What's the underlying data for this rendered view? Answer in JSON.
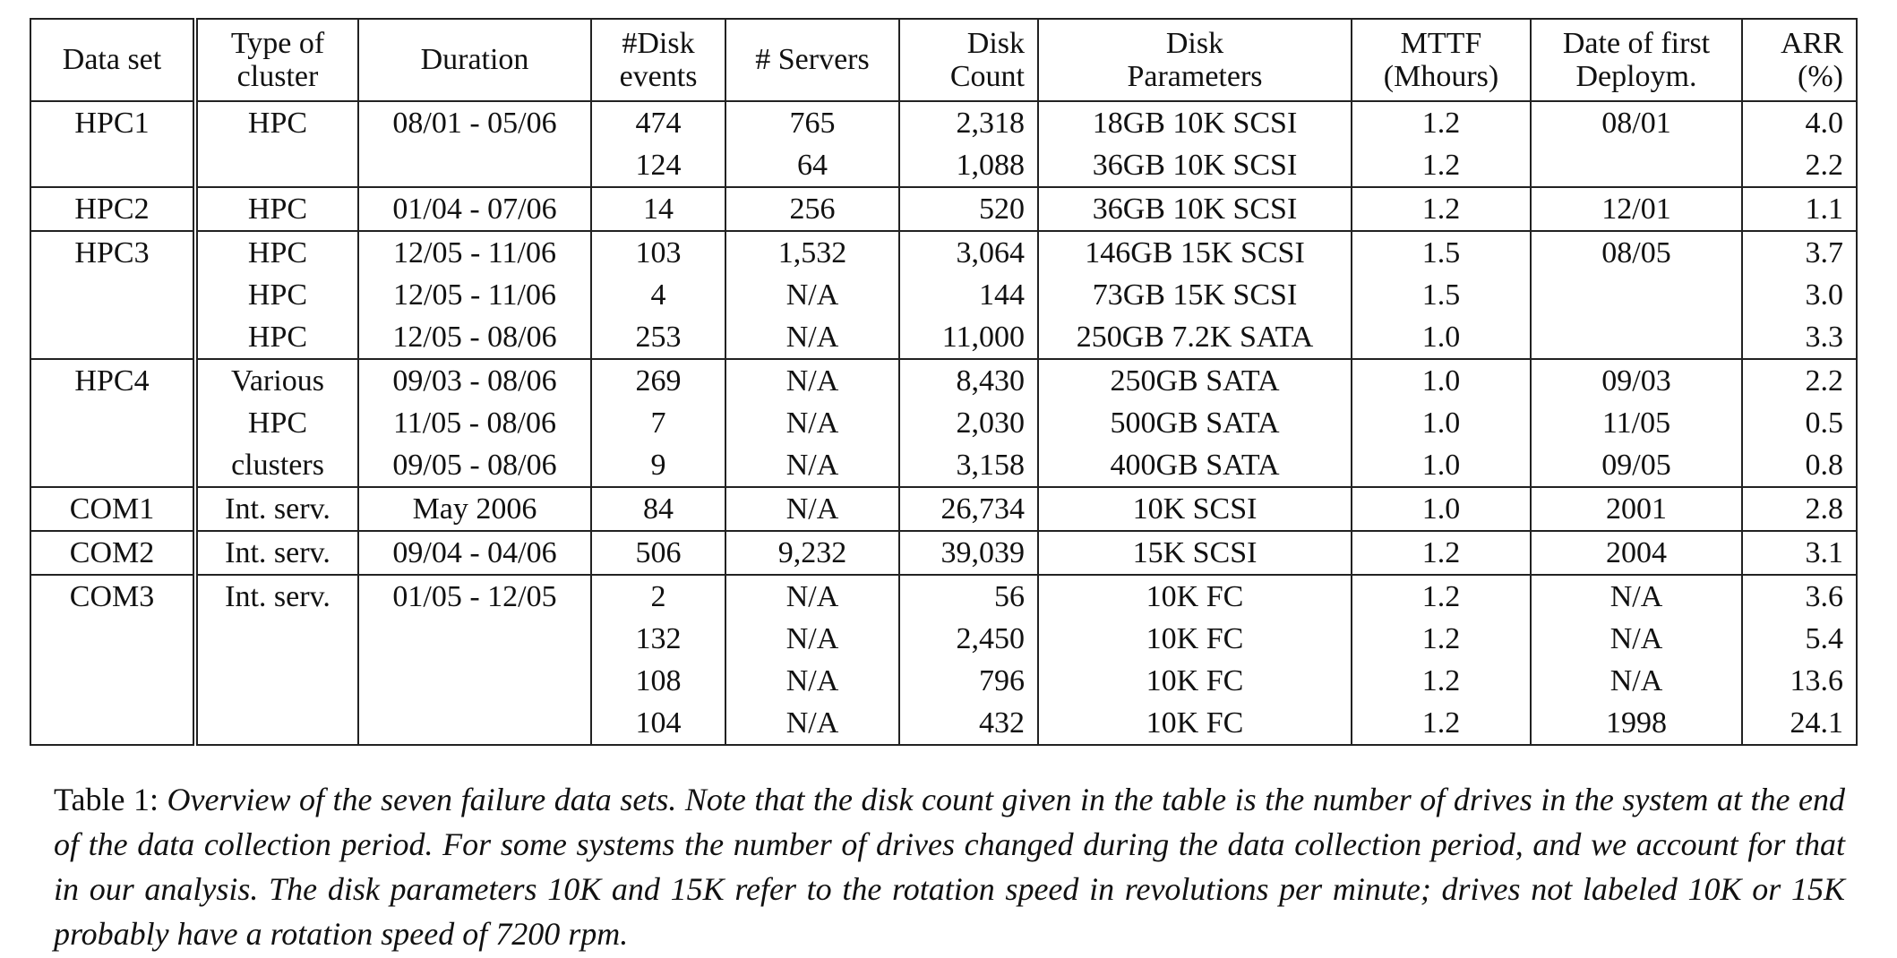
{
  "table": {
    "headers": [
      [
        "Data set"
      ],
      [
        "Type of",
        "cluster"
      ],
      [
        "Duration"
      ],
      [
        "#Disk",
        "events"
      ],
      [
        "# Servers"
      ],
      [
        "Disk",
        "Count"
      ],
      [
        "Disk",
        "Parameters"
      ],
      [
        "MTTF",
        "(Mhours)"
      ],
      [
        "Date of first",
        "Deploym."
      ],
      [
        "ARR",
        "(%)"
      ]
    ],
    "groups": [
      {
        "rows": [
          [
            "HPC1",
            "HPC",
            "08/01 - 05/06",
            "474",
            "765",
            "2,318",
            "18GB 10K SCSI",
            "1.2",
            "08/01",
            "4.0"
          ],
          [
            "",
            "",
            "",
            "124",
            "64",
            "1,088",
            "36GB 10K SCSI",
            "1.2",
            "",
            "2.2"
          ]
        ]
      },
      {
        "rows": [
          [
            "HPC2",
            "HPC",
            "01/04 - 07/06",
            "14",
            "256",
            "520",
            "36GB 10K SCSI",
            "1.2",
            "12/01",
            "1.1"
          ]
        ]
      },
      {
        "rows": [
          [
            "HPC3",
            "HPC",
            "12/05 - 11/06",
            "103",
            "1,532",
            "3,064",
            "146GB 15K SCSI",
            "1.5",
            "08/05",
            "3.7"
          ],
          [
            "",
            "HPC",
            "12/05 - 11/06",
            "4",
            "N/A",
            "144",
            "73GB 15K SCSI",
            "1.5",
            "",
            "3.0"
          ],
          [
            "",
            "HPC",
            "12/05 - 08/06",
            "253",
            "N/A",
            "11,000",
            "250GB 7.2K SATA",
            "1.0",
            "",
            "3.3"
          ]
        ]
      },
      {
        "rows": [
          [
            "HPC4",
            "Various",
            "09/03 - 08/06",
            "269",
            "N/A",
            "8,430",
            "250GB SATA",
            "1.0",
            "09/03",
            "2.2"
          ],
          [
            "",
            "HPC",
            "11/05 - 08/06",
            "7",
            "N/A",
            "2,030",
            "500GB SATA",
            "1.0",
            "11/05",
            "0.5"
          ],
          [
            "",
            "clusters",
            "09/05 - 08/06",
            "9",
            "N/A",
            "3,158",
            "400GB SATA",
            "1.0",
            "09/05",
            "0.8"
          ]
        ]
      },
      {
        "rows": [
          [
            "COM1",
            "Int. serv.",
            "May 2006",
            "84",
            "N/A",
            "26,734",
            "10K SCSI",
            "1.0",
            "2001",
            "2.8"
          ]
        ]
      },
      {
        "rows": [
          [
            "COM2",
            "Int. serv.",
            "09/04 - 04/06",
            "506",
            "9,232",
            "39,039",
            "15K SCSI",
            "1.2",
            "2004",
            "3.1"
          ]
        ]
      },
      {
        "rows": [
          [
            "COM3",
            "Int. serv.",
            "01/05 - 12/05",
            "2",
            "N/A",
            "56",
            "10K FC",
            "1.2",
            "N/A",
            "3.6"
          ],
          [
            "",
            "",
            "",
            "132",
            "N/A",
            "2,450",
            "10K FC",
            "1.2",
            "N/A",
            "5.4"
          ],
          [
            "",
            "",
            "",
            "108",
            "N/A",
            "796",
            "10K FC",
            "1.2",
            "N/A",
            "13.6"
          ],
          [
            "",
            "",
            "",
            "104",
            "N/A",
            "432",
            "10K FC",
            "1.2",
            "1998",
            "24.1"
          ]
        ]
      }
    ]
  },
  "caption": {
    "label": "Table 1:",
    "text": "Overview of the seven failure data sets. Note that the disk count given in the table is the number of drives in the system at the end of the data collection period. For some systems the number of drives changed during the data collection period, and we account for that in our analysis. The disk parameters 10K and 15K refer to the rotation speed in revolutions per minute; drives not labeled 10K or 15K probably have a rotation speed of 7200 rpm."
  }
}
